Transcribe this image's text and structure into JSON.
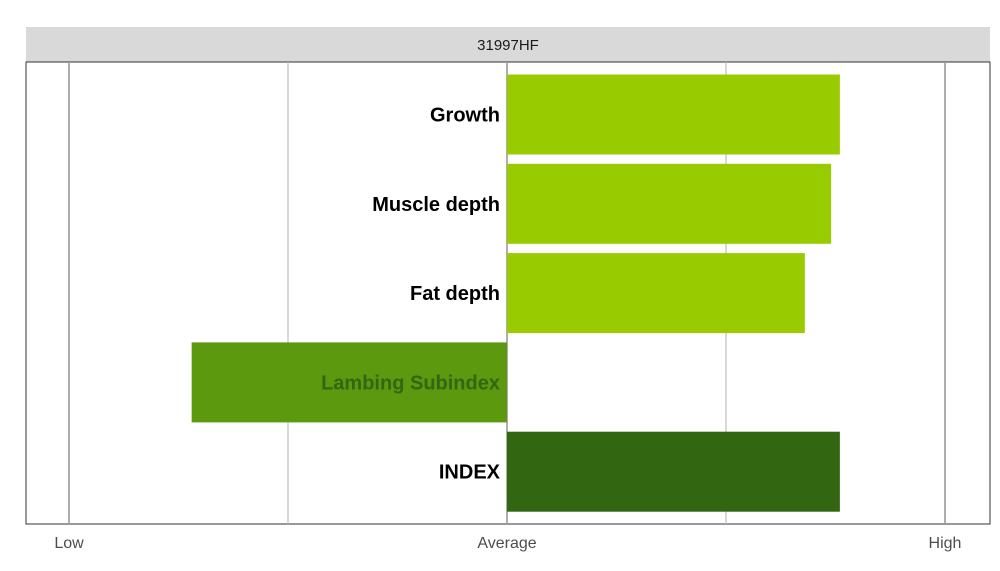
{
  "chart_data": {
    "type": "bar",
    "orientation": "horizontal",
    "title": "31997HF",
    "categories": [
      "Growth",
      "Muscle depth",
      "Fat depth",
      "Lambing Subindex",
      "INDEX"
    ],
    "values": [
      0.76,
      0.74,
      0.68,
      -0.72,
      0.76
    ],
    "colors": [
      "#99cc00",
      "#99cc00",
      "#99cc00",
      "#5c990f",
      "#336611"
    ],
    "label_colors": [
      "#000000",
      "#000000",
      "#000000",
      "#336611",
      "#000000"
    ],
    "xlim": [
      -1,
      1
    ],
    "x_ticks": [
      {
        "value": -1,
        "label": "Low"
      },
      {
        "value": 0,
        "label": "Average"
      },
      {
        "value": 1,
        "label": "High"
      }
    ],
    "x_gridlines": [
      -1,
      -0.5,
      0,
      0.5,
      1
    ],
    "grid": true,
    "legend": "none"
  }
}
